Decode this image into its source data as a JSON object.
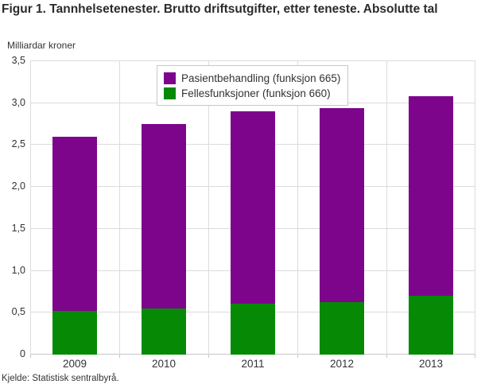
{
  "header": {
    "title": "Figur 1. Tannhelsetenester. Brutto driftsutgifter, etter teneste. Absolutte tal",
    "unit_label": "Milliardar kroner"
  },
  "footer": {
    "source": "Kjelde: Statistisk sentralbyrå."
  },
  "colors": {
    "pasientbehandling": "#7d058c",
    "fellesfunksjoner": "#068a06",
    "gridline": "#dcdcdc",
    "axis_line": "#c6c6c6",
    "text": "#333333"
  },
  "chart_data": {
    "type": "bar",
    "stacked": true,
    "title": "Figur 1. Tannhelsetenester. Brutto driftsutgifter, etter teneste. Absolutte tal",
    "ylabel": "Milliardar kroner",
    "xlabel": "",
    "categories": [
      "2009",
      "2010",
      "2011",
      "2012",
      "2013"
    ],
    "series": [
      {
        "name": "Fellesfunksjoner (funksjon 660)",
        "color": "#068a06",
        "values": [
          0.52,
          0.55,
          0.61,
          0.63,
          0.7
        ]
      },
      {
        "name": "Pasientbehandling (funksjon 665)",
        "color": "#7d058c",
        "values": [
          2.08,
          2.2,
          2.29,
          2.31,
          2.38
        ]
      }
    ],
    "stack_totals": [
      2.6,
      2.75,
      2.9,
      2.94,
      3.08
    ],
    "legend_order_top_to_bottom": [
      "Pasientbehandling (funksjon 665)",
      "Fellesfunksjoner (funksjon 660)"
    ],
    "legend_position": "top-center-inside",
    "ylim": [
      0,
      3.5
    ],
    "ytick_step": 0.5,
    "ytick_labels": [
      "0",
      "0,5",
      "1,0",
      "1,5",
      "2,0",
      "2,5",
      "3,0",
      "3,5"
    ],
    "grid": true,
    "source": "Kjelde: Statistisk sentralbyrå."
  }
}
